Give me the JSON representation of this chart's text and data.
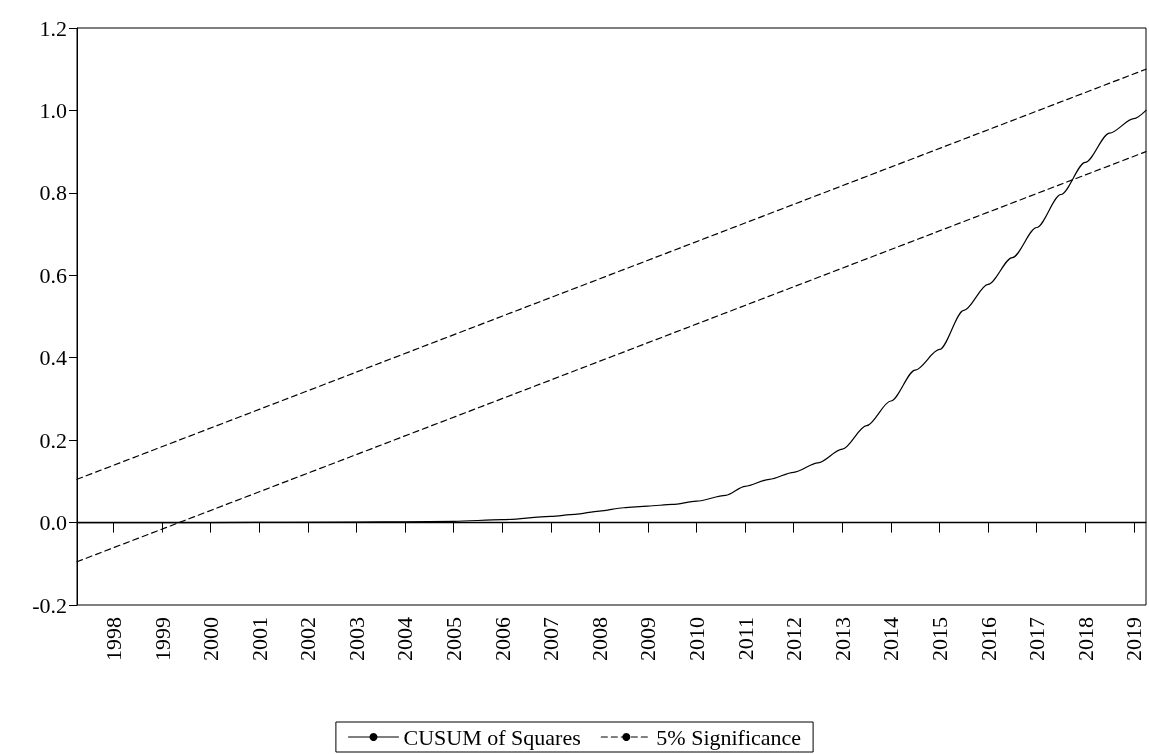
{
  "chart_data": {
    "type": "line",
    "marker": "none",
    "grid": false,
    "legend": "bottom",
    "xlim": [
      1997.25,
      2019.25
    ],
    "xticks": [
      1998,
      1999,
      2000,
      2001,
      2002,
      2003,
      2004,
      2005,
      2006,
      2007,
      2008,
      2009,
      2010,
      2011,
      2012,
      2013,
      2014,
      2015,
      2016,
      2017,
      2018,
      2019
    ],
    "ylim": [
      -0.2,
      1.2
    ],
    "yticks": [
      {
        "value": -0.2,
        "label": "-0.2"
      },
      {
        "value": 0,
        "label": "0.0"
      },
      {
        "value": 0.2,
        "label": "0.2"
      },
      {
        "value": 0.4,
        "label": "0.4"
      },
      {
        "value": 0.6,
        "label": "0.6"
      },
      {
        "value": 0.8,
        "label": "0.8"
      },
      {
        "value": 1,
        "label": "1.0"
      },
      {
        "value": 1.2,
        "label": "1.2"
      }
    ],
    "ref_lines": [
      {
        "axis": "y",
        "value": 0,
        "label": null,
        "color": "#000000",
        "line_style": "solid"
      }
    ],
    "series": [
      {
        "name": "CUSUM of Squares",
        "color": "#000000",
        "line_style": "solid",
        "x": [
          1997.25,
          2000,
          2003,
          2004,
          2005,
          2006,
          2007,
          2007.5,
          2008,
          2008.5,
          2009,
          2009.5,
          2010,
          2010.6,
          2011,
          2011.5,
          2012,
          2012.5,
          2013,
          2013.5,
          2014,
          2014.5,
          2015,
          2015.5,
          2016,
          2016.5,
          2017,
          2017.5,
          2018,
          2018.5,
          2019,
          2019.25
        ],
        "values": [
          0,
          0,
          0.001,
          0.002,
          0.003,
          0.007,
          0.015,
          0.02,
          0.028,
          0.036,
          0.04,
          0.044,
          0.052,
          0.066,
          0.088,
          0.105,
          0.122,
          0.145,
          0.178,
          0.235,
          0.295,
          0.37,
          0.42,
          0.515,
          0.578,
          0.643,
          0.716,
          0.796,
          0.874,
          0.945,
          0.98,
          1.0
        ]
      },
      {
        "name": "5% Significance",
        "color": "#000000",
        "line_style": "dashed",
        "x": [
          1997.25,
          2019.25
        ],
        "values": [
          0.105,
          1.1
        ]
      },
      {
        "color": "#000000",
        "line_style": "dashed",
        "x": [
          1997.25,
          2019.25
        ],
        "values": [
          -0.095,
          0.9
        ]
      }
    ]
  }
}
